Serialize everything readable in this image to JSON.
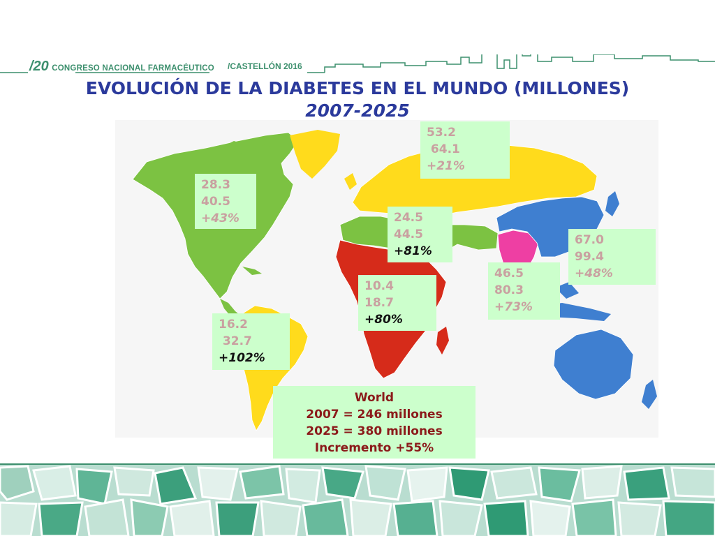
{
  "header": {
    "number": "/20",
    "congress": "CONGRESO NACIONAL FARMACÉUTICO",
    "city": "/CASTELLÓN 2016"
  },
  "title": {
    "line1": "EVOLUCIÓN DE LA DIABETES EN EL MUNDO (MILLONES)",
    "line2": "2007-2025"
  },
  "regions": {
    "north_america": {
      "v2007": "28.3",
      "v2025": "40.5",
      "change": "+43%"
    },
    "europe": {
      "v2007": "53.2",
      "v2025": " 64.1",
      "change": "+21%"
    },
    "middle_east_north_africa": {
      "v2007": "24.5",
      "v2025": "44.5",
      "change": "+81%"
    },
    "western_pacific": {
      "v2007": "67.0",
      "v2025": "99.4",
      "change": "+48%"
    },
    "south_east_asia": {
      "v2007": "46.5",
      "v2025": "80.3",
      "change": "+73%"
    },
    "africa": {
      "v2007": "10.4",
      "v2025": "18.7",
      "change": "+80%"
    },
    "south_america": {
      "v2007": "16.2",
      "v2025": " 32.7",
      "change": "+102%"
    }
  },
  "world": {
    "label": "World",
    "y2007": "2007 = 246 millones",
    "y2025": "2025 = 380 millones",
    "increase": "Incremento +55%"
  },
  "colors": {
    "title": "#2b3a9c",
    "brand": "#3c8f6d",
    "box_bg": "#ccffcc",
    "world_text": "#8b1a1a",
    "north_america": "#7cc242",
    "south_america": "#ffdb1c",
    "europe": "#ffdb1c",
    "africa": "#d62b1a",
    "mena": "#7cc242",
    "south_east_asia": "#ee3fa3",
    "western_pacific": "#3f7fd0"
  }
}
